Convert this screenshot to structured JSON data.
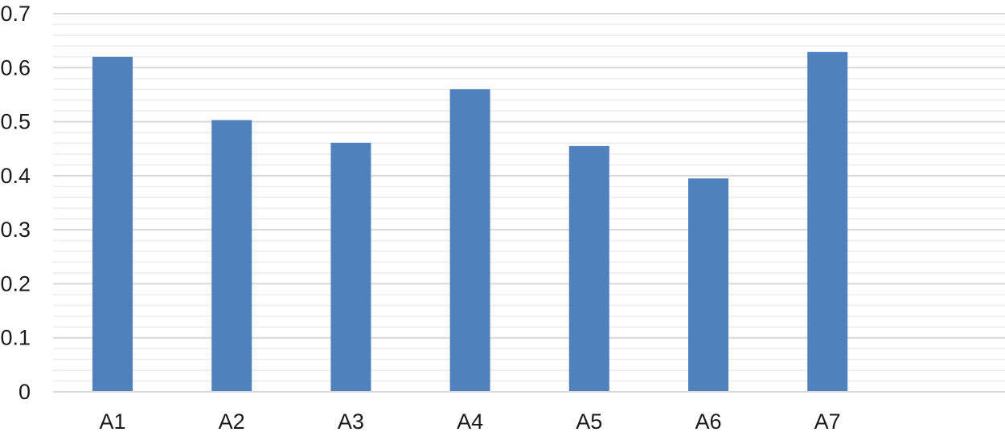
{
  "chart_data": {
    "type": "bar",
    "categories": [
      "A1",
      "A2",
      "A3",
      "A4",
      "A5",
      "A6",
      "A7"
    ],
    "values": [
      0.62,
      0.503,
      0.461,
      0.56,
      0.455,
      0.395,
      0.629
    ],
    "title": "",
    "xlabel": "",
    "ylabel": "",
    "ylim": [
      0,
      0.7
    ],
    "yticks": [
      "0",
      "0.1",
      "0.2",
      "0.3",
      "0.4",
      "0.5",
      "0.6",
      "0.7"
    ],
    "grid": true,
    "minor_grid": true,
    "legend": "none",
    "colors": {
      "bar": "#4f81bd",
      "major_grid": "#d9d9d9",
      "minor_grid": "#ececec",
      "axis": "#d9d9d9",
      "text": "#1a1a1a"
    }
  }
}
